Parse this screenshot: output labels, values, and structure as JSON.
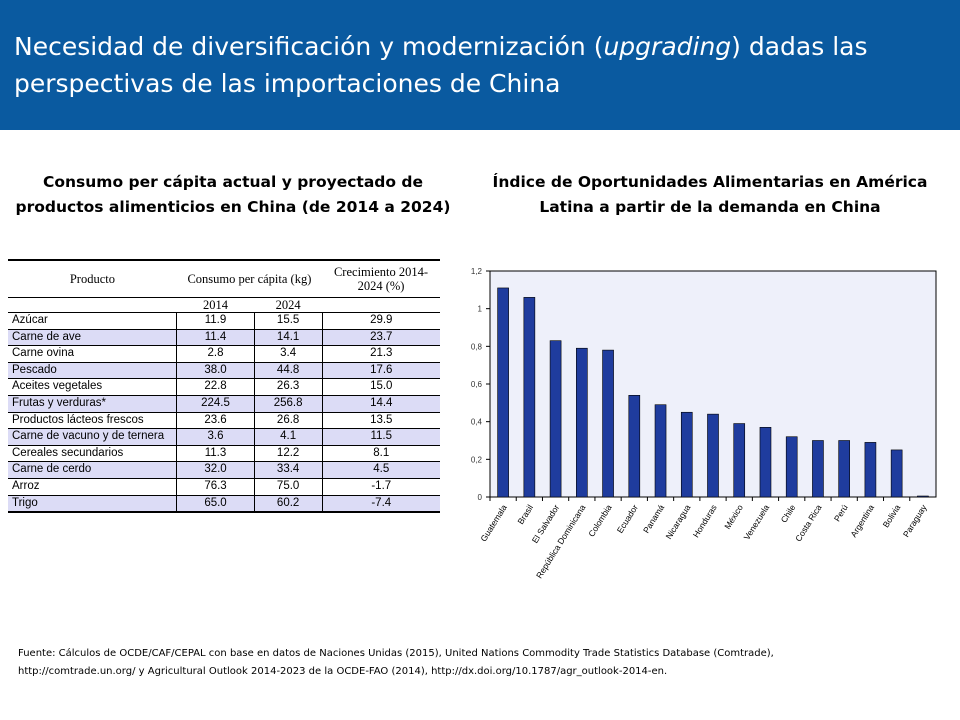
{
  "header": {
    "title_part1": "Necesidad de diversificación y modernización (",
    "title_italic": "upgrading",
    "title_part2": ") dadas las perspectivas de las importaciones de China"
  },
  "left_panel": {
    "subtitle": "Consumo per cápita actual y proyectado de productos alimenticios en China (de 2014 a 2024)",
    "table": {
      "col_product": "Producto",
      "col_consumption": "Consumo per cápita (kg)",
      "col_growth": "Crecimiento 2014-2024 (%)",
      "year1": "2014",
      "year2": "2024",
      "rows": [
        {
          "product": "Azúcar",
          "y2014": "11.9",
          "y2024": "15.5",
          "growth": "29.9"
        },
        {
          "product": "Carne de ave",
          "y2014": "11.4",
          "y2024": "14.1",
          "growth": "23.7"
        },
        {
          "product": "Carne ovina",
          "y2014": "2.8",
          "y2024": "3.4",
          "growth": "21.3"
        },
        {
          "product": "Pescado",
          "y2014": "38.0",
          "y2024": "44.8",
          "growth": "17.6"
        },
        {
          "product": "Aceites vegetales",
          "y2014": "22.8",
          "y2024": "26.3",
          "growth": "15.0"
        },
        {
          "product": "Frutas y verduras*",
          "y2014": "224.5",
          "y2024": "256.8",
          "growth": "14.4"
        },
        {
          "product": "Productos lácteos frescos",
          "y2014": "23.6",
          "y2024": "26.8",
          "growth": "13.5"
        },
        {
          "product": "Carne de vacuno y de ternera",
          "y2014": "3.6",
          "y2024": "4.1",
          "growth": "11.5"
        },
        {
          "product": "Cereales secundarios",
          "y2014": "11.3",
          "y2024": "12.2",
          "growth": "8.1"
        },
        {
          "product": "Carne de cerdo",
          "y2014": "32.0",
          "y2024": "33.4",
          "growth": "4.5"
        },
        {
          "product": "Arroz",
          "y2014": "76.3",
          "y2024": "75.0",
          "growth": "-1.7"
        },
        {
          "product": "Trigo",
          "y2014": "65.0",
          "y2024": "60.2",
          "growth": "-7.4"
        }
      ]
    }
  },
  "right_panel": {
    "subtitle": "Índice de Oportunidades Alimentarias en América Latina a partir de la demanda en China"
  },
  "chart_data": {
    "type": "bar",
    "categories": [
      "Guatemala",
      "Brasil",
      "El Salvador",
      "República Dominicana",
      "Colombia",
      "Ecuador",
      "Panamá",
      "Nicaragua",
      "Honduras",
      "México",
      "Venezuela",
      "Chile",
      "Costa Rica",
      "Perú",
      "Argentina",
      "Bolivia",
      "Paraguay"
    ],
    "values": [
      1.11,
      1.06,
      0.83,
      0.79,
      0.78,
      0.54,
      0.49,
      0.45,
      0.44,
      0.39,
      0.37,
      0.32,
      0.3,
      0.3,
      0.29,
      0.25,
      0.005
    ],
    "ylim": [
      0,
      1.2
    ],
    "yticks": [
      "0",
      "0,2",
      "0,4",
      "0,6",
      "0,8",
      "1",
      "1,2"
    ],
    "grid": false,
    "colors": {
      "bar": "#1f3c9e",
      "plot_bg": "#eef0fa"
    }
  },
  "footer": {
    "line1": "Fuente: Cálculos de OCDE/CAF/CEPAL con base en datos de Naciones Unidas (2015), United Nations Commodity Trade Statistics Database (Comtrade),",
    "line2": "http://comtrade.un.org/ y Agricultural Outlook 2014-2023 de la OCDE-FAO (2014), http://dx.doi.org/10.1787/agr_outlook-2014-en."
  }
}
